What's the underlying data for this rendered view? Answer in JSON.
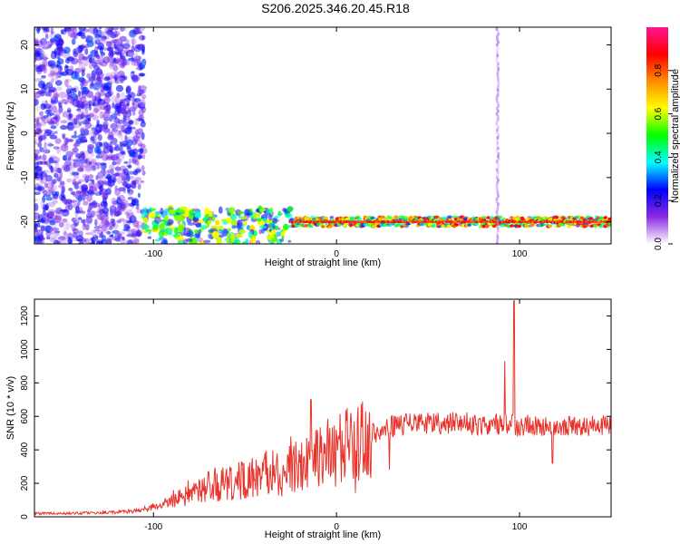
{
  "title": "S206.2025.346.20.45.R18",
  "colors": {
    "signal": "#e8322a",
    "axis": "#000000",
    "scatter": "#8a2be2"
  },
  "chart_data": [
    {
      "type": "heatmap",
      "title": "S206.2025.346.20.45.R18",
      "xlabel": "Height of straight line (km)",
      "ylabel": "Frequency (Hz)",
      "xlim": [
        -165,
        150
      ],
      "ylim": [
        -25,
        24
      ],
      "x_ticks": [
        -100,
        0,
        100
      ],
      "y_ticks": [
        -20,
        -10,
        0,
        10,
        20
      ],
      "colorbar": {
        "label": "Normalized spectral amplitude",
        "range": [
          0,
          1
        ],
        "ticks": [
          0.0,
          0.2,
          0.4,
          0.6,
          0.8
        ],
        "colormap": [
          "#ffffff",
          "#8a2be2",
          "#0000ff",
          "#00ffff",
          "#00ff00",
          "#ffff00",
          "#ff8c00",
          "#ff0000",
          "#ff1493"
        ]
      },
      "features": [
        {
          "name": "broadband noise",
          "x_range": [
            -165,
            -105
          ],
          "y_range": [
            -25,
            24
          ],
          "amplitude": 0.15
        },
        {
          "name": "emergent signal",
          "x_range": [
            -105,
            -25
          ],
          "y_range": [
            -25,
            -17
          ],
          "amplitude": 0.35
        },
        {
          "name": "tone ~-20 Hz",
          "x_range": [
            -25,
            150
          ],
          "y": -20,
          "amplitude": 0.85
        },
        {
          "name": "vertical stripe",
          "x": 88,
          "y_range": [
            -25,
            24
          ],
          "amplitude": 0.1
        }
      ]
    },
    {
      "type": "line",
      "xlabel": "Height of straight line (km)",
      "ylabel": "SNR (10 * v/v)",
      "xlim": [
        -165,
        150
      ],
      "ylim": [
        0,
        1300
      ],
      "x_ticks": [
        -100,
        0,
        100
      ],
      "y_ticks": [
        0,
        200,
        400,
        600,
        800,
        1000,
        1200
      ],
      "series": [
        {
          "name": "SNR",
          "color": "#e8322a",
          "x": [
            -165,
            -150,
            -140,
            -130,
            -120,
            -110,
            -100,
            -90,
            -85,
            -80,
            -75,
            -70,
            -65,
            -60,
            -55,
            -50,
            -45,
            -40,
            -35,
            -30,
            -25,
            -20,
            -15,
            -10,
            -5,
            0,
            5,
            10,
            15,
            20,
            25,
            30,
            35,
            40,
            45,
            50,
            55,
            60,
            65,
            70,
            75,
            80,
            85,
            90,
            95,
            100,
            105,
            110,
            115,
            120,
            125,
            130,
            135,
            140,
            145,
            150
          ],
          "values": [
            20,
            20,
            22,
            25,
            28,
            35,
            60,
            100,
            130,
            150,
            165,
            180,
            200,
            210,
            220,
            215,
            240,
            250,
            270,
            260,
            280,
            300,
            330,
            350,
            380,
            400,
            420,
            440,
            480,
            500,
            520,
            540,
            550,
            555,
            560,
            558,
            560,
            555,
            560,
            558,
            555,
            555,
            560,
            560,
            560,
            540,
            545,
            540,
            540,
            538,
            540,
            540,
            538,
            540,
            540,
            545
          ],
          "spikes": [
            {
              "x": -70,
              "value": 270
            },
            {
              "x": -25,
              "value": 480
            },
            {
              "x": -14,
              "value": 700
            },
            {
              "x": 82,
              "value": 530
            },
            {
              "x": 92,
              "value": 930
            },
            {
              "x": 97,
              "value": 1290
            },
            {
              "x": 118,
              "value": 320
            }
          ]
        }
      ]
    }
  ]
}
